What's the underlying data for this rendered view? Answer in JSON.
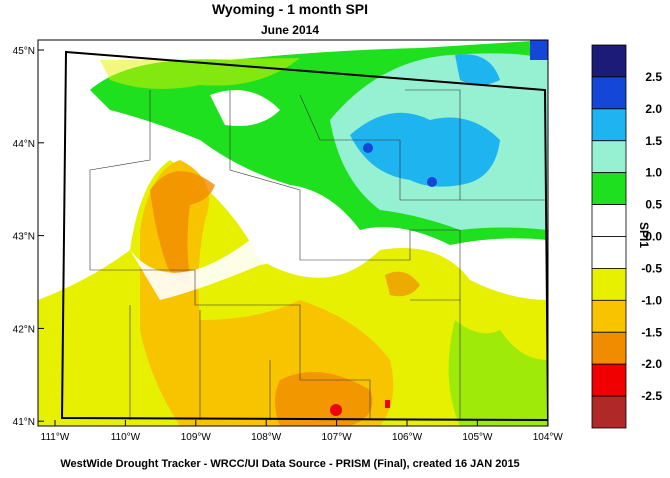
{
  "title": "Wyoming - 1 month SPI",
  "subtitle": "June 2014",
  "lat_ticks": [
    "45°N",
    "44°N",
    "43°N",
    "42°N",
    "41°N"
  ],
  "lon_ticks": [
    "111°W",
    "110°W",
    "109°W",
    "108°W",
    "107°W",
    "106°W",
    "105°W",
    "104°W"
  ],
  "colorbar": {
    "title": "SPI1",
    "labels": [
      "2.5",
      "2.0",
      "1.5",
      "1.0",
      "0.5",
      "0.0",
      "-0.5",
      "-1.0",
      "-1.5",
      "-2.0",
      "-2.5"
    ],
    "colors": [
      "#1c1c78",
      "#1446d8",
      "#1eb4f0",
      "#96f0d2",
      "#1ee01e",
      "#ffffff",
      "#ffffff",
      "#e6f000",
      "#f8c400",
      "#f08c00",
      "#f00000",
      "#b02828"
    ]
  },
  "footer": "WestWide Drought Tracker - WRCC/UI  Data Source - PRISM (Final), created 16 JAN 2015"
}
